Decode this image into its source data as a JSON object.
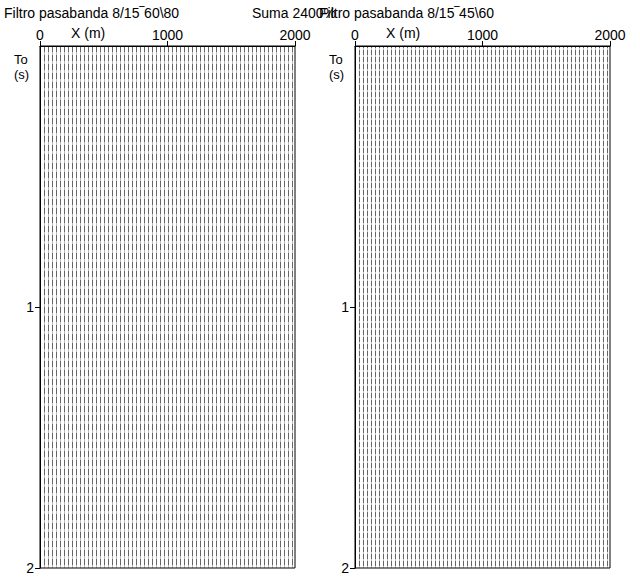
{
  "title": "Suma 2400%",
  "chart_data": [
    {
      "type": "wiggle",
      "title": "Filtro pasabanda 8/15‾60\\80",
      "x_label": "X (m)",
      "y_label": "To (s)",
      "xlim": [
        0,
        2000
      ],
      "xticks": [
        0,
        1000,
        2000
      ],
      "ylim": [
        0,
        2
      ],
      "yticks": [
        1,
        2
      ]
    },
    {
      "type": "wiggle",
      "title": "Filtro pasabanda 8/15‾45\\60",
      "x_label": "X (m)",
      "y_label": "To (s)",
      "xlim": [
        0,
        2000
      ],
      "xticks": [
        0,
        1000,
        2000
      ],
      "ylim": [
        0,
        2
      ],
      "yticks": [
        1,
        2
      ]
    }
  ]
}
